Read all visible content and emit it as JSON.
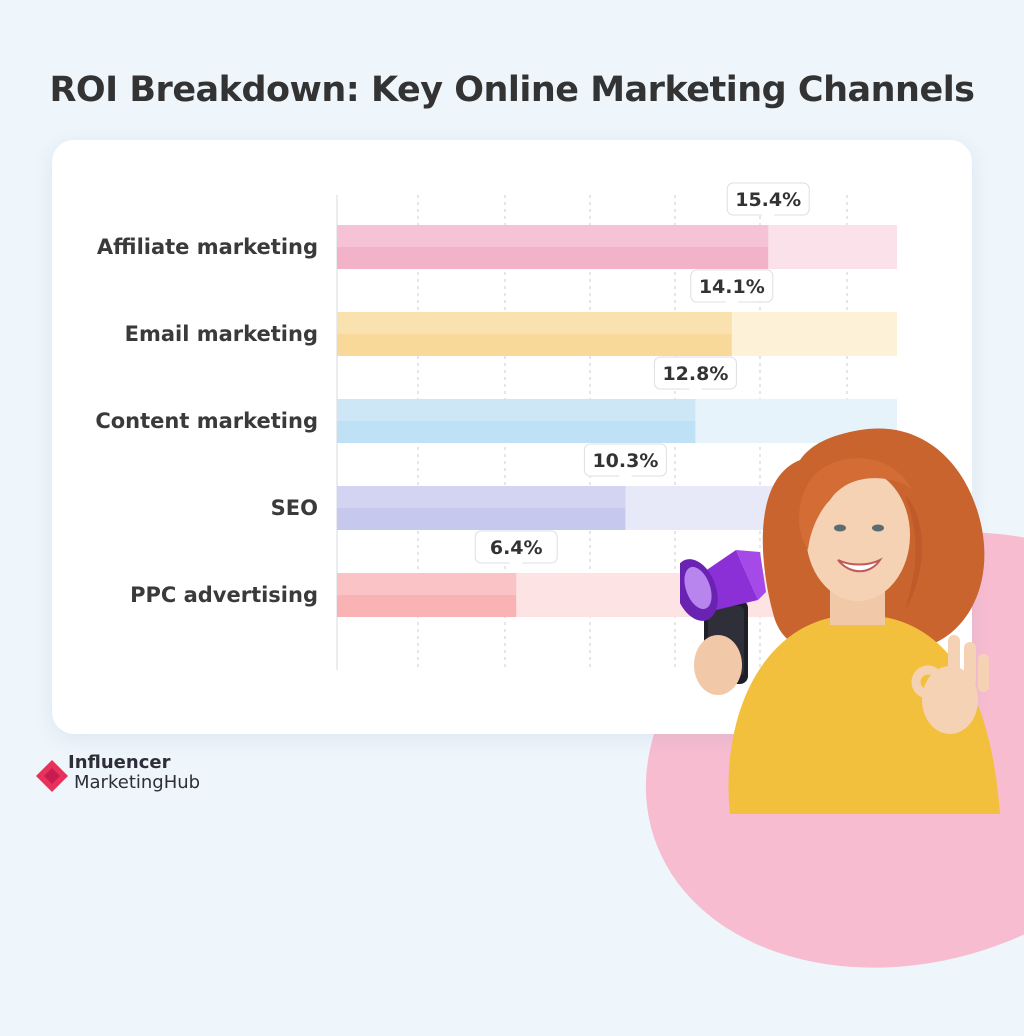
{
  "title": "ROI Breakdown: Key Online Marketing Channels",
  "chart_data": {
    "type": "bar",
    "orientation": "horizontal",
    "title": "ROI Breakdown: Key Online Marketing Channels",
    "xlabel": "",
    "ylabel": "",
    "categories": [
      "Affiliate marketing",
      "Email marketing",
      "Content marketing",
      "SEO",
      "PPC advertising"
    ],
    "values": [
      15.4,
      14.1,
      12.8,
      10.3,
      6.4
    ],
    "labels": [
      "15.4%",
      "14.1%",
      "12.8%",
      "10.3%",
      "6.4%"
    ],
    "unit": "%",
    "colors": [
      "#f2b3c9",
      "#f8d99a",
      "#bfe1f5",
      "#c6c8ee",
      "#f9b3b5"
    ],
    "track_colors": [
      "#fbe1ea",
      "#fdf2d8",
      "#e6f3fb",
      "#e7e8f8",
      "#fde3e3"
    ],
    "xlim": [
      0,
      20
    ],
    "grid": true,
    "legend": "none"
  },
  "logo": {
    "line1": "Influencer",
    "line2": "MarketingHub",
    "colors": [
      "#e7335b",
      "#c81b4f"
    ]
  },
  "illustration": "woman-with-megaphone-and-phone"
}
